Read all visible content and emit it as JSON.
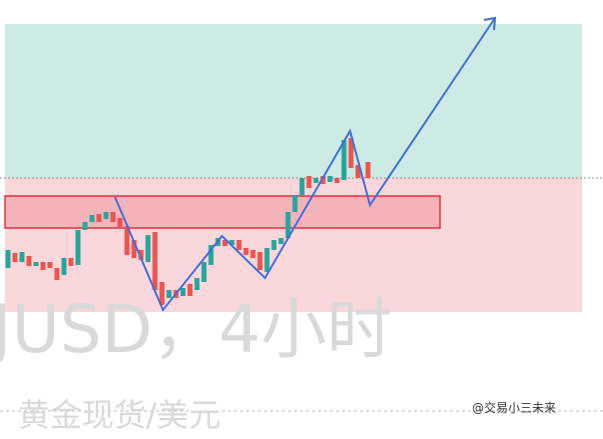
{
  "watermark": {
    "symbol": "JUSD，4小时",
    "name": "黄金现货/美元"
  },
  "credit": "@交易小三未来"
}
